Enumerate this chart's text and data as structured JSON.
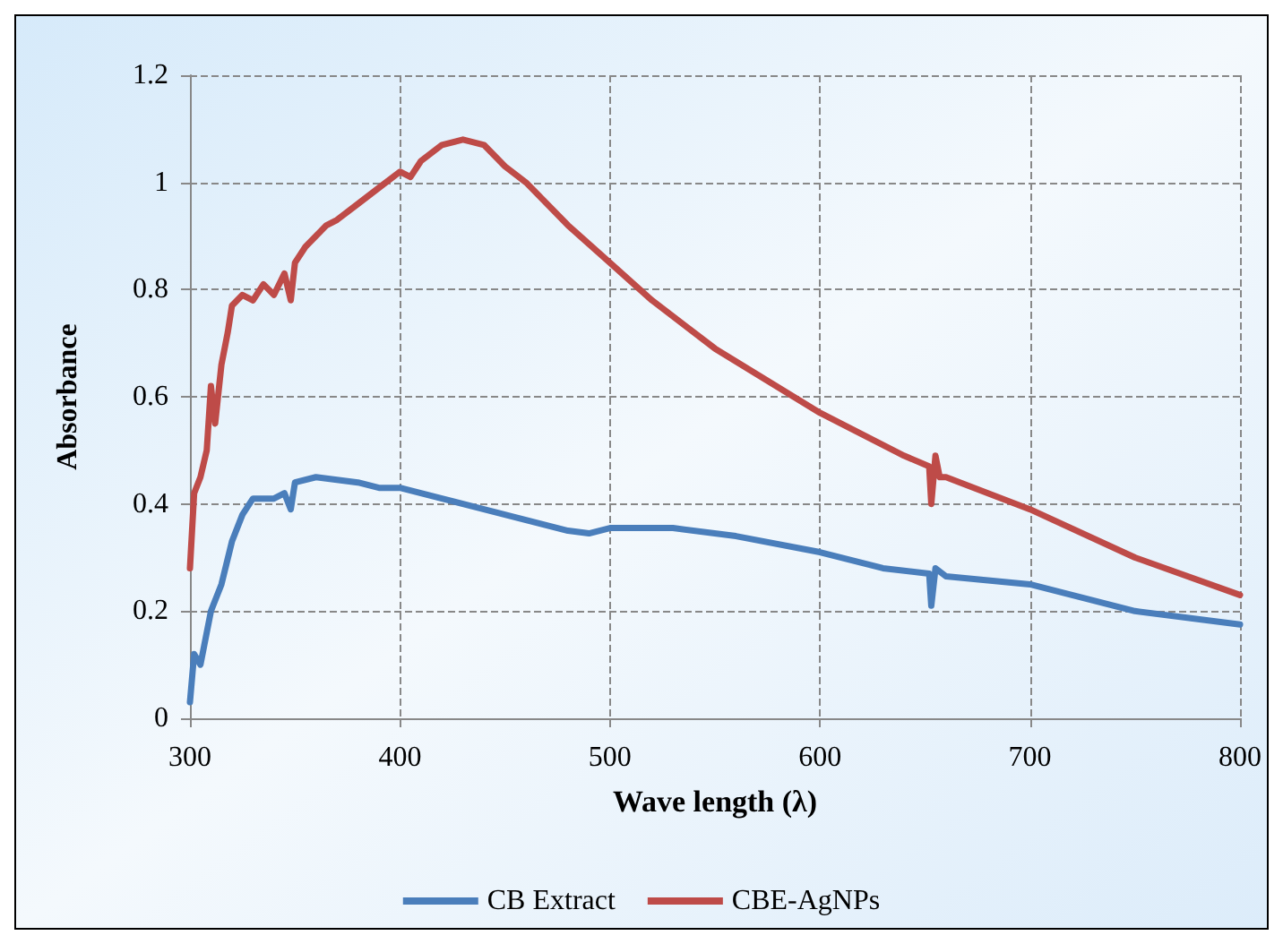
{
  "chart_data": {
    "type": "line",
    "xlabel": "Wave length (λ)",
    "ylabel": "Absorbance",
    "xlim": [
      300,
      800
    ],
    "xticks": [
      300,
      400,
      500,
      600,
      700,
      800
    ],
    "ylim": [
      0,
      1.2
    ],
    "yticks": [
      0,
      0.2,
      0.4,
      0.6,
      0.8,
      1,
      1.2
    ],
    "grid": true,
    "legend": "bottom",
    "marker": "none",
    "line_style": "solid",
    "series": [
      {
        "name": "CB Extract",
        "color": "#4a7ebb",
        "x": [
          300,
          302,
          305,
          310,
          315,
          320,
          325,
          330,
          340,
          345,
          348,
          350,
          360,
          370,
          380,
          390,
          400,
          420,
          440,
          460,
          480,
          490,
          500,
          530,
          560,
          600,
          630,
          652,
          653,
          655,
          660,
          700,
          720,
          750,
          800
        ],
        "values": [
          0.03,
          0.12,
          0.1,
          0.2,
          0.25,
          0.33,
          0.38,
          0.41,
          0.41,
          0.42,
          0.39,
          0.44,
          0.45,
          0.445,
          0.44,
          0.43,
          0.43,
          0.41,
          0.39,
          0.37,
          0.35,
          0.345,
          0.355,
          0.355,
          0.34,
          0.31,
          0.28,
          0.27,
          0.21,
          0.28,
          0.265,
          0.25,
          0.23,
          0.2,
          0.175
        ]
      },
      {
        "name": "CBE-AgNPs",
        "color": "#be4b48",
        "x": [
          300,
          302,
          305,
          308,
          310,
          312,
          315,
          318,
          320,
          325,
          330,
          335,
          340,
          345,
          348,
          350,
          355,
          360,
          365,
          370,
          380,
          390,
          400,
          405,
          410,
          420,
          430,
          440,
          450,
          460,
          480,
          500,
          520,
          550,
          600,
          640,
          652,
          653,
          655,
          657,
          660,
          700,
          750,
          800
        ],
        "values": [
          0.28,
          0.42,
          0.45,
          0.5,
          0.62,
          0.55,
          0.66,
          0.72,
          0.77,
          0.79,
          0.78,
          0.81,
          0.79,
          0.83,
          0.78,
          0.85,
          0.88,
          0.9,
          0.92,
          0.93,
          0.96,
          0.99,
          1.02,
          1.01,
          1.04,
          1.07,
          1.08,
          1.07,
          1.03,
          1.0,
          0.92,
          0.85,
          0.78,
          0.69,
          0.57,
          0.49,
          0.47,
          0.4,
          0.49,
          0.45,
          0.45,
          0.39,
          0.3,
          0.23
        ]
      }
    ]
  }
}
